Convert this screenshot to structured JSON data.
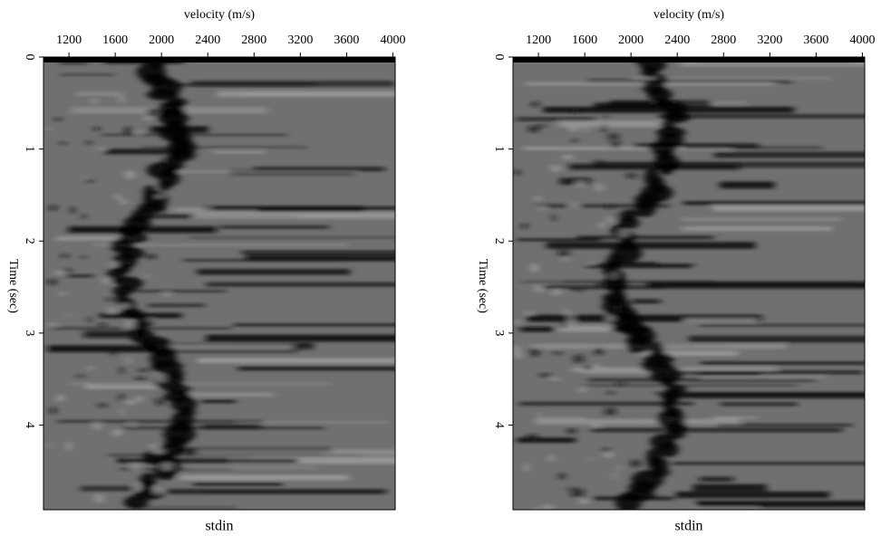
{
  "chart_data": [
    {
      "type": "heatmap",
      "title": "stdin",
      "x_label": "velocity (m/s)",
      "y_label": "Time (sec)",
      "xlim": [
        980,
        4020
      ],
      "xticks": [
        1200,
        1600,
        2000,
        2400,
        2800,
        3200,
        3600,
        4000
      ],
      "ylim": [
        0,
        4.92
      ],
      "yticks": [
        0,
        1,
        2,
        3,
        4
      ]
    },
    {
      "type": "heatmap",
      "title": "stdin",
      "x_label": "velocity (m/s)",
      "y_label": "Time (sec)",
      "xlim": [
        980,
        4020
      ],
      "xticks": [
        1200,
        1600,
        2000,
        2400,
        2800,
        3200,
        3600,
        4000
      ],
      "ylim": [
        0,
        4.92
      ],
      "yticks": [
        0,
        1,
        2,
        3,
        4
      ]
    }
  ]
}
